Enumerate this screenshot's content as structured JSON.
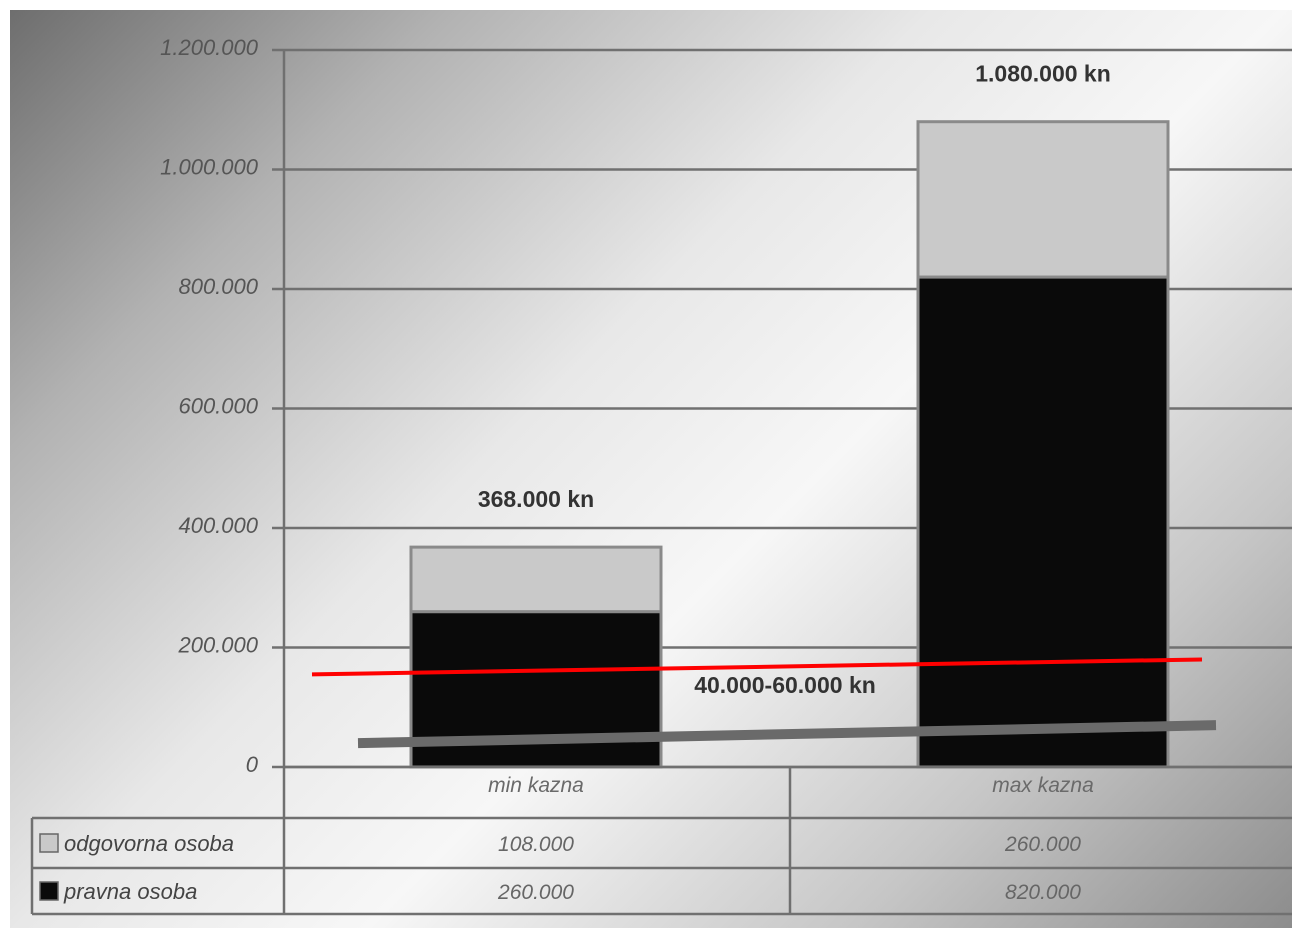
{
  "chart_data": {
    "type": "bar",
    "stacked": true,
    "categories": [
      "min kazna",
      "max kazna"
    ],
    "series": [
      {
        "name": "pravna osoba",
        "values": [
          260000,
          820000
        ],
        "color": "#0a0a0a"
      },
      {
        "name": "odgovorna osoba",
        "values": [
          108000,
          260000
        ],
        "color": "#c9c9c9"
      }
    ],
    "totals_labels": [
      "368.000 kn",
      "1.080.000 kn"
    ],
    "ylim": [
      0,
      1200000
    ],
    "yticks": [
      {
        "value": 0,
        "label": "0"
      },
      {
        "value": 200000,
        "label": "200.000"
      },
      {
        "value": 400000,
        "label": "400.000"
      },
      {
        "value": 600000,
        "label": "600.000"
      },
      {
        "value": 800000,
        "label": "800.000"
      },
      {
        "value": 1000000,
        "label": "1.000.000"
      },
      {
        "value": 1200000,
        "label": "1.200.000"
      }
    ],
    "grid": true,
    "data_table": {
      "rows": [
        {
          "series": "odgovorna osoba",
          "values": [
            "108.000",
            "260.000"
          ],
          "swatch": "#c9c9c9"
        },
        {
          "series": "pravna osoba",
          "values": [
            "260.000",
            "820.000"
          ],
          "swatch": "#0a0a0a"
        }
      ]
    },
    "annotations": [
      {
        "text": "40.000-60.000 kn"
      },
      {
        "type": "line",
        "color": "#ff0000",
        "y_start": 155000,
        "y_end": 180000
      },
      {
        "type": "line",
        "color": "#6a6a6a",
        "y_start": 40000,
        "y_end": 70000
      }
    ]
  }
}
